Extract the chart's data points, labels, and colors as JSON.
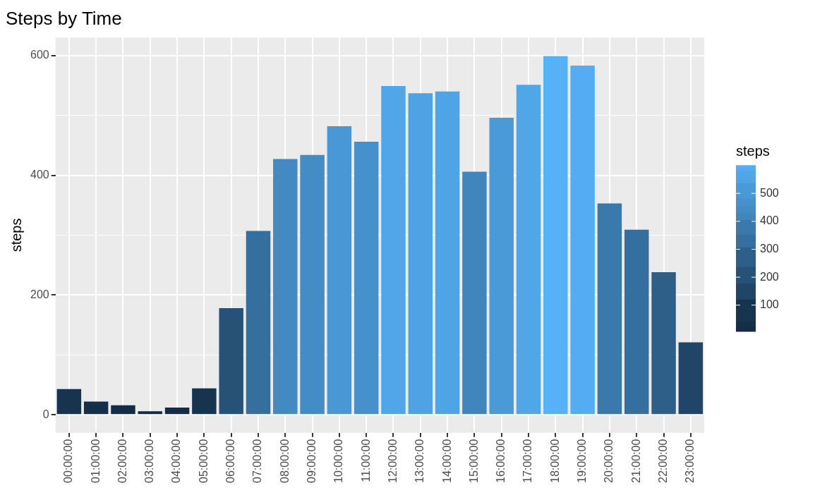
{
  "chart_data": {
    "type": "bar",
    "title": "Steps by Time",
    "ylabel": "steps",
    "clabel": "steps",
    "categories": [
      "00:00:00",
      "01:00:00",
      "02:00:00",
      "03:00:00",
      "04:00:00",
      "05:00:00",
      "06:00:00",
      "07:00:00",
      "08:00:00",
      "09:00:00",
      "10:00:00",
      "11:00:00",
      "12:00:00",
      "13:00:00",
      "14:00:00",
      "15:00:00",
      "16:00:00",
      "17:00:00",
      "18:00:00",
      "19:00:00",
      "20:00:00",
      "21:00:00",
      "22:00:00",
      "23:00:00"
    ],
    "values": [
      43,
      22,
      16,
      6,
      12,
      44,
      178,
      307,
      427,
      434,
      482,
      456,
      549,
      537,
      540,
      406,
      496,
      551,
      599,
      583,
      353,
      309,
      238,
      121
    ],
    "colors": [
      "#17334e",
      "#152f48",
      "#142d46",
      "#132b43",
      "#142c45",
      "#17344f",
      "#265277",
      "#356f9e",
      "#438ac3",
      "#438cc5",
      "#4997d4",
      "#4691cc",
      "#50a6e8",
      "#4fa3e4",
      "#4fa4e5",
      "#4085bc",
      "#4a9ad8",
      "#51a6e8",
      "#56b1f7",
      "#54adf2",
      "#3a79ac",
      "#356f9f",
      "#2d5f89",
      "#204566"
    ],
    "ylim": [
      -30,
      630
    ],
    "yticks": [
      0,
      {
        "value": 100,
        "label": null
      },
      200,
      {
        "value": 300,
        "label": null
      },
      400,
      {
        "value": 500,
        "label": null
      },
      600
    ],
    "clim": [
      6,
      599
    ],
    "cticks": [
      100,
      200,
      300,
      400,
      500
    ],
    "grid": true
  }
}
